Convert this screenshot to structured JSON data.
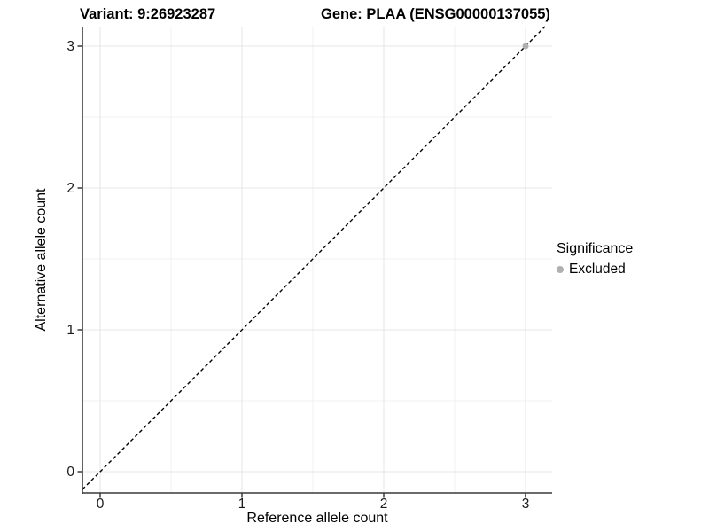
{
  "title": {
    "left": "Variant: 9:26923287",
    "right": "Gene: PLAA (ENSG00000137055)"
  },
  "axes": {
    "x_label": "Reference allele count",
    "y_label": "Alternative allele count"
  },
  "legend": {
    "title": "Significance",
    "position": "right",
    "entries": [
      {
        "label": "Excluded",
        "color": "#b0b0b0"
      }
    ]
  },
  "colors": {
    "background": "#ffffff",
    "grid_major": "#e7e7e7",
    "grid_minor": "#f0f0f0",
    "axis_line": "#3a3a3a",
    "reference_line": "#000000",
    "point_excluded": "#b0b0b0"
  },
  "chart_data": {
    "type": "scatter",
    "title": "Variant: 9:26923287   Gene: PLAA (ENSG00000137055)",
    "xlabel": "Reference allele count",
    "ylabel": "Alternative allele count",
    "xlim": [
      -0.125,
      3.1875
    ],
    "ylim": [
      -0.15,
      3.1375
    ],
    "x_ticks": [
      0,
      1,
      2,
      3
    ],
    "y_ticks": [
      0,
      1,
      2,
      3
    ],
    "x_minor_ticks": [
      0.5,
      1.5,
      2.5
    ],
    "y_minor_ticks": [
      0.5,
      1.5,
      2.5
    ],
    "grid": "major+minor",
    "legend_position": "right",
    "series": [
      {
        "name": "Excluded",
        "color": "#b0b0b0",
        "marker": "circle",
        "points": [
          {
            "x": 3,
            "y": 3
          }
        ]
      }
    ],
    "reference_line": {
      "equation": "y = x",
      "style": "dashed",
      "color": "#000000"
    }
  }
}
